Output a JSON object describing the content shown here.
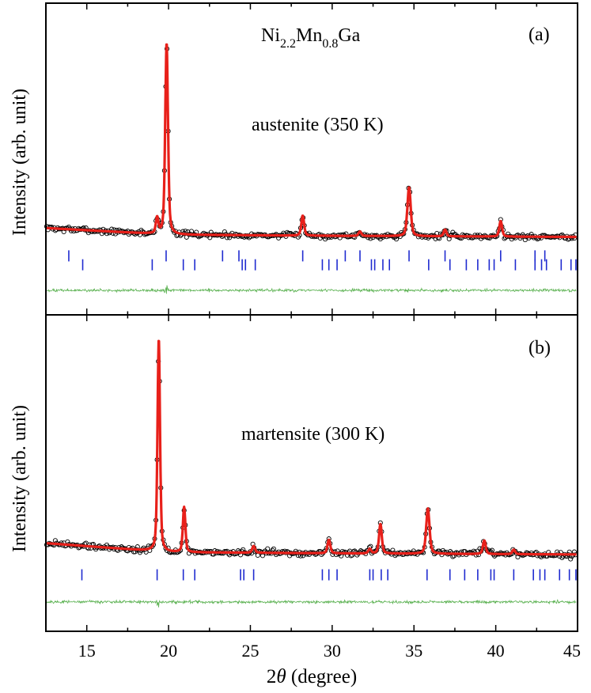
{
  "figure": {
    "xlabel_prefix": "2",
    "xlabel_symbol": "θ",
    "xlabel_suffix": " (degree)",
    "xlim": [
      12.5,
      45
    ],
    "x_tick_labels": [
      "15",
      "20",
      "25",
      "30",
      "35",
      "40",
      "45"
    ],
    "colors": {
      "observed": "#000000",
      "calculated": "#e8201a",
      "difference": "#58b04e",
      "bragg": "#1f2bd0"
    }
  },
  "panels": [
    {
      "label": "(a)",
      "ylabel": "Intensity (arb. unit)",
      "composition": {
        "base1": "Ni",
        "sub1": "2.2",
        "base2": "Mn",
        "sub2": "0.8",
        "base3": "Ga"
      },
      "annotation": "austenite (350 K)"
    },
    {
      "label": "(b)",
      "ylabel": "Intensity (arb. unit)",
      "annotation": "martensite (300 K)"
    }
  ],
  "chart_data": [
    {
      "type": "line",
      "panel": "(a)",
      "title": "Ni2.2Mn0.8Ga",
      "annotation": "austenite (350 K)",
      "xlabel": "2θ (degree)",
      "ylabel": "Intensity (arb. unit)",
      "xlim": [
        12.5,
        45
      ],
      "ylim": [
        -0.35,
        1.05
      ],
      "background": [
        [
          12.5,
          0.04
        ],
        [
          20,
          0.01
        ],
        [
          30,
          0.005
        ],
        [
          45,
          0.0
        ]
      ],
      "peaks": [
        {
          "x": 19.3,
          "height": 0.07,
          "width": 0.09
        },
        {
          "x": 19.88,
          "height": 0.86,
          "width": 0.1
        },
        {
          "x": 28.2,
          "height": 0.09,
          "width": 0.1
        },
        {
          "x": 31.7,
          "height": 0.02,
          "width": 0.1
        },
        {
          "x": 34.7,
          "height": 0.22,
          "width": 0.12
        },
        {
          "x": 36.9,
          "height": 0.03,
          "width": 0.1
        },
        {
          "x": 40.3,
          "height": 0.07,
          "width": 0.1
        }
      ],
      "series": [
        {
          "name": "observed",
          "style": "open-circles"
        },
        {
          "name": "calculated",
          "style": "line"
        },
        {
          "name": "difference",
          "style": "line",
          "offset": -0.24
        },
        {
          "name": "bragg-positions",
          "style": "ticks"
        }
      ],
      "bragg_rows": [
        {
          "offset": -0.085,
          "positions": [
            13.9,
            19.85,
            23.3,
            24.3,
            28.2,
            30.8,
            31.7,
            34.7,
            36.9,
            40.3,
            42.4,
            43.0
          ]
        },
        {
          "offset": -0.125,
          "positions": [
            14.75,
            19.0,
            20.9,
            21.6,
            24.5,
            24.7,
            25.3,
            29.4,
            29.8,
            30.3,
            32.4,
            32.6,
            33.1,
            33.5,
            35.9,
            37.2,
            38.2,
            38.9,
            39.6,
            39.9,
            41.2,
            42.4,
            42.8,
            43.1,
            44.0,
            44.6,
            44.9
          ]
        }
      ]
    },
    {
      "type": "line",
      "panel": "(b)",
      "annotation": "martensite (300 K)",
      "xlabel": "2θ (degree)",
      "ylabel": "Intensity (arb. unit)",
      "xlim": [
        12.5,
        45
      ],
      "ylim": [
        -0.35,
        1.05
      ],
      "background": [
        [
          12.5,
          0.04
        ],
        [
          20,
          0.0
        ],
        [
          30,
          -0.005
        ],
        [
          45,
          -0.01
        ]
      ],
      "peaks": [
        {
          "x": 19.4,
          "height": 0.94,
          "width": 0.09
        },
        {
          "x": 20.95,
          "height": 0.2,
          "width": 0.09
        },
        {
          "x": 25.2,
          "height": 0.03,
          "width": 0.1
        },
        {
          "x": 29.8,
          "height": 0.06,
          "width": 0.1
        },
        {
          "x": 32.3,
          "height": 0.02,
          "width": 0.1
        },
        {
          "x": 32.95,
          "height": 0.13,
          "width": 0.1
        },
        {
          "x": 35.85,
          "height": 0.2,
          "width": 0.12
        },
        {
          "x": 39.3,
          "height": 0.06,
          "width": 0.1
        },
        {
          "x": 41.1,
          "height": 0.02,
          "width": 0.1
        }
      ],
      "series": [
        {
          "name": "observed",
          "style": "open-circles"
        },
        {
          "name": "calculated",
          "style": "line"
        },
        {
          "name": "difference",
          "style": "line",
          "offset": -0.22
        },
        {
          "name": "bragg-positions",
          "style": "ticks"
        }
      ],
      "bragg_rows": [
        {
          "offset": -0.1,
          "positions": [
            14.7,
            19.3,
            20.9,
            21.6,
            24.4,
            24.6,
            25.2,
            29.4,
            29.8,
            30.3,
            32.3,
            32.5,
            33.0,
            33.4,
            35.8,
            37.2,
            38.1,
            38.9,
            39.7,
            39.9,
            41.1,
            42.3,
            42.7,
            43.0,
            43.9,
            44.5,
            44.9
          ]
        }
      ]
    }
  ]
}
